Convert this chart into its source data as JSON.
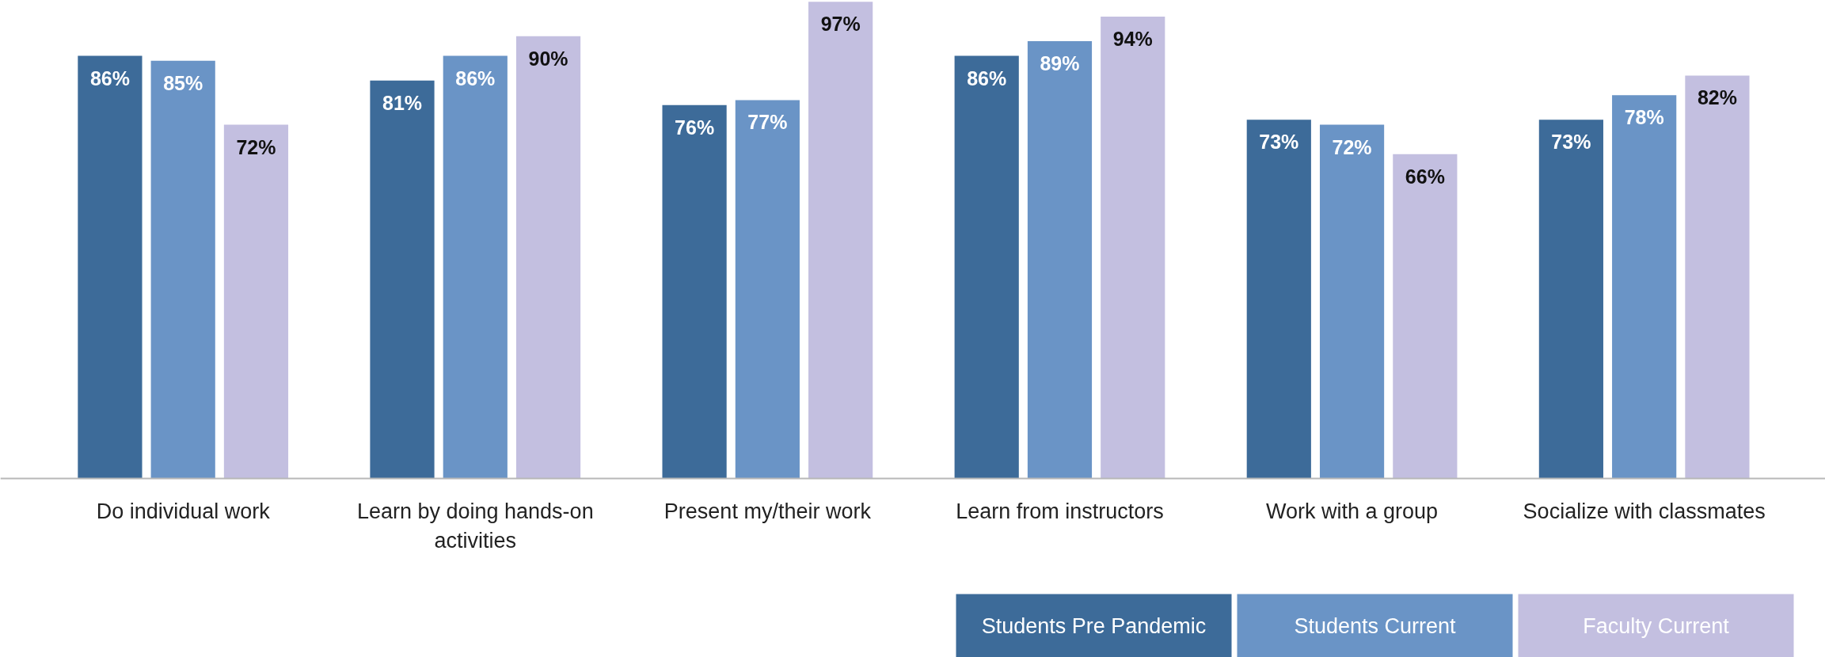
{
  "chart_data": {
    "type": "bar",
    "categories": [
      "Do individual work",
      "Learn by doing hands-on activities",
      "Present my/their work",
      "Learn from instructors",
      "Work with a group",
      "Socialize with classmates"
    ],
    "series": [
      {
        "name": "Students Pre Pandemic",
        "color": "#3d6b99",
        "values": [
          86,
          81,
          76,
          86,
          73,
          73
        ],
        "value_labels": [
          "86%",
          "81%",
          "76%",
          "86%",
          "73%",
          "73%"
        ]
      },
      {
        "name": "Students Current",
        "color": "#6a94c6",
        "values": [
          85,
          86,
          77,
          89,
          72,
          78
        ],
        "value_labels": [
          "85%",
          "86%",
          "77%",
          "89%",
          "72%",
          "78%"
        ]
      },
      {
        "name": "Faculty Current",
        "color": "#c3bfe0",
        "values": [
          72,
          90,
          97,
          94,
          66,
          82
        ],
        "value_labels": [
          "72%",
          "90%",
          "97%",
          "94%",
          "66%",
          "82%"
        ]
      }
    ],
    "grid": false,
    "legend": "bottom right"
  }
}
